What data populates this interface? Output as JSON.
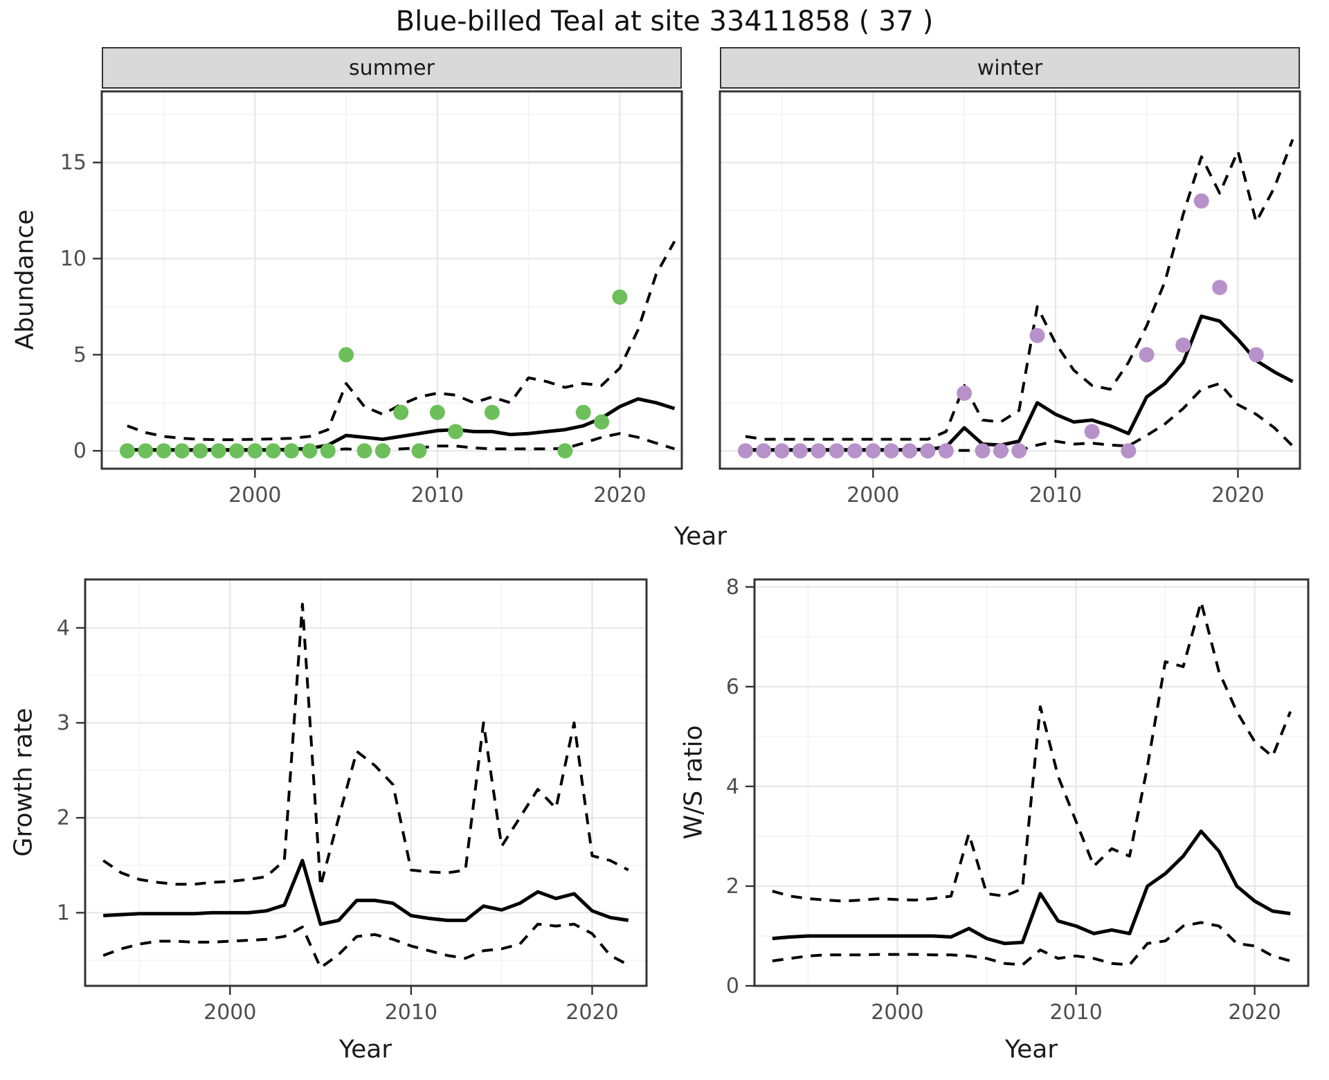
{
  "title": "Blue-billed Teal at site 33411858 ( 37 )",
  "facets": {
    "summer": "summer",
    "winter": "winter"
  },
  "axis_labels": {
    "abundance": "Abundance",
    "year_top": "Year",
    "growth": "Growth rate",
    "year_growth": "Year",
    "ws": "W/S ratio",
    "year_ws": "Year"
  },
  "colors": {
    "summer_point": "#6CBF5B",
    "winter_point": "#B791C9",
    "line": "#000000",
    "strip_bg": "#D9D9D9",
    "grid_major": "#E7E7E7",
    "grid_minor": "#F3F3F3",
    "border": "#333333",
    "tick_text": "#4D4D4D",
    "text": "#1A1A1A"
  },
  "chart_data": [
    {
      "id": "abundance-summer",
      "type": "line",
      "facet": "summer",
      "xlabel": "Year",
      "ylabel": "Abundance",
      "xlim": [
        1991.6,
        2023.4
      ],
      "ylim": [
        -0.93,
        18.7
      ],
      "xticks": [
        2000,
        2010,
        2020
      ],
      "yticks": [
        0,
        5,
        10,
        15
      ],
      "xminor": [
        1995,
        2005,
        2015
      ],
      "yminor": [
        2.5,
        7.5,
        12.5,
        17.5
      ],
      "show_ytick_labels": true,
      "years": [
        1993,
        1994,
        1995,
        1996,
        1997,
        1998,
        1999,
        2000,
        2001,
        2002,
        2003,
        2004,
        2005,
        2006,
        2007,
        2008,
        2009,
        2010,
        2011,
        2012,
        2013,
        2014,
        2015,
        2016,
        2017,
        2018,
        2019,
        2020,
        2021,
        2022,
        2023
      ],
      "series": [
        {
          "name": "median",
          "style": "solid",
          "values": [
            0.05,
            0.05,
            0.05,
            0.05,
            0.05,
            0.05,
            0.05,
            0.05,
            0.05,
            0.08,
            0.12,
            0.3,
            0.8,
            0.7,
            0.6,
            0.75,
            0.9,
            1.05,
            1.1,
            1.0,
            1.0,
            0.85,
            0.9,
            1.0,
            1.1,
            1.3,
            1.7,
            2.3,
            2.7,
            2.5,
            2.2
          ]
        },
        {
          "name": "upper-ci",
          "style": "dashed",
          "values": [
            1.3,
            0.95,
            0.75,
            0.65,
            0.6,
            0.58,
            0.58,
            0.6,
            0.62,
            0.65,
            0.75,
            1.1,
            3.5,
            2.3,
            1.9,
            2.4,
            2.8,
            3.0,
            2.9,
            2.5,
            2.8,
            2.5,
            3.8,
            3.6,
            3.3,
            3.5,
            3.4,
            4.3,
            6.3,
            9.2,
            10.9
          ]
        },
        {
          "name": "lower-ci",
          "style": "dashed",
          "values": [
            0.05,
            0.02,
            0.02,
            0.02,
            0.02,
            0.02,
            0.02,
            0.02,
            0.02,
            0.02,
            0.02,
            0.05,
            0.1,
            0.05,
            0.05,
            0.1,
            0.15,
            0.25,
            0.25,
            0.15,
            0.1,
            0.1,
            0.1,
            0.1,
            0.12,
            0.4,
            0.7,
            0.9,
            0.7,
            0.4,
            0.1
          ]
        }
      ],
      "points": {
        "name": "observed-summer",
        "color": "#6CBF5B",
        "data": [
          [
            1993,
            0
          ],
          [
            1994,
            0
          ],
          [
            1995,
            0
          ],
          [
            1996,
            0
          ],
          [
            1997,
            0
          ],
          [
            1998,
            0
          ],
          [
            1999,
            0
          ],
          [
            2000,
            0
          ],
          [
            2001,
            0
          ],
          [
            2002,
            0
          ],
          [
            2003,
            0
          ],
          [
            2004,
            0
          ],
          [
            2005,
            5
          ],
          [
            2006,
            0
          ],
          [
            2007,
            0
          ],
          [
            2008,
            2
          ],
          [
            2009,
            0
          ],
          [
            2010,
            2
          ],
          [
            2011,
            1
          ],
          [
            2013,
            2
          ],
          [
            2017,
            0
          ],
          [
            2018,
            2
          ],
          [
            2019,
            1.5
          ],
          [
            2020,
            8
          ]
        ]
      }
    },
    {
      "id": "abundance-winter",
      "type": "line",
      "facet": "winter",
      "xlabel": "Year",
      "ylabel": "Abundance",
      "xlim": [
        1991.6,
        2023.4
      ],
      "ylim": [
        -0.93,
        18.7
      ],
      "xticks": [
        2000,
        2010,
        2020
      ],
      "yticks": [
        0,
        5,
        10,
        15
      ],
      "xminor": [
        1995,
        2005,
        2015
      ],
      "yminor": [
        2.5,
        7.5,
        12.5,
        17.5
      ],
      "show_ytick_labels": false,
      "years": [
        1993,
        1994,
        1995,
        1996,
        1997,
        1998,
        1999,
        2000,
        2001,
        2002,
        2003,
        2004,
        2005,
        2006,
        2007,
        2008,
        2009,
        2010,
        2011,
        2012,
        2013,
        2014,
        2015,
        2016,
        2017,
        2018,
        2019,
        2020,
        2021,
        2022,
        2023
      ],
      "series": [
        {
          "name": "median",
          "style": "solid",
          "values": [
            0.05,
            0.05,
            0.05,
            0.05,
            0.05,
            0.05,
            0.05,
            0.05,
            0.05,
            0.05,
            0.08,
            0.2,
            1.2,
            0.35,
            0.3,
            0.5,
            2.5,
            1.9,
            1.5,
            1.6,
            1.3,
            0.9,
            2.8,
            3.5,
            4.6,
            7.0,
            6.75,
            5.8,
            4.7,
            4.1,
            3.6
          ]
        },
        {
          "name": "upper-ci",
          "style": "dashed",
          "values": [
            0.75,
            0.6,
            0.6,
            0.6,
            0.6,
            0.6,
            0.6,
            0.6,
            0.6,
            0.6,
            0.6,
            1.0,
            3.4,
            1.6,
            1.5,
            2.1,
            7.5,
            5.6,
            4.2,
            3.4,
            3.2,
            4.6,
            6.5,
            8.8,
            12.3,
            15.3,
            13.4,
            15.6,
            11.9,
            13.7,
            16.2
          ]
        },
        {
          "name": "lower-ci",
          "style": "dashed",
          "values": [
            0.02,
            0.02,
            0.02,
            0.02,
            0.02,
            0.02,
            0.02,
            0.02,
            0.02,
            0.02,
            0.02,
            0.02,
            0.02,
            0.02,
            0.02,
            0.02,
            0.3,
            0.5,
            0.35,
            0.4,
            0.3,
            0.25,
            0.8,
            1.4,
            2.2,
            3.2,
            3.5,
            2.4,
            1.9,
            1.2,
            0.25
          ]
        }
      ],
      "points": {
        "name": "observed-winter",
        "color": "#B791C9",
        "data": [
          [
            1993,
            0
          ],
          [
            1994,
            0
          ],
          [
            1995,
            0
          ],
          [
            1996,
            0
          ],
          [
            1997,
            0
          ],
          [
            1998,
            0
          ],
          [
            1999,
            0
          ],
          [
            2000,
            0
          ],
          [
            2001,
            0
          ],
          [
            2002,
            0
          ],
          [
            2003,
            0
          ],
          [
            2004,
            0
          ],
          [
            2005,
            3
          ],
          [
            2006,
            0
          ],
          [
            2007,
            0
          ],
          [
            2008,
            0
          ],
          [
            2009,
            6
          ],
          [
            2012,
            1
          ],
          [
            2014,
            0
          ],
          [
            2015,
            5
          ],
          [
            2017,
            5.5
          ],
          [
            2018,
            13
          ],
          [
            2019,
            8.5
          ],
          [
            2021,
            5
          ]
        ]
      }
    },
    {
      "id": "growth-rate",
      "type": "line",
      "xlabel": "Year",
      "ylabel": "Growth rate",
      "xlim": [
        1992.0,
        2023.0
      ],
      "ylim": [
        0.23,
        4.51
      ],
      "xticks": [
        2000,
        2010,
        2020
      ],
      "yticks": [
        1,
        2,
        3,
        4
      ],
      "xminor": [
        1995,
        2005,
        2015
      ],
      "yminor": [
        0.5,
        1.5,
        2.5,
        3.5
      ],
      "show_ytick_labels": true,
      "years": [
        1993,
        1994,
        1995,
        1996,
        1997,
        1998,
        1999,
        2000,
        2001,
        2002,
        2003,
        2004,
        2005,
        2006,
        2007,
        2008,
        2009,
        2010,
        2011,
        2012,
        2013,
        2014,
        2015,
        2016,
        2017,
        2018,
        2019,
        2020,
        2021,
        2022
      ],
      "series": [
        {
          "name": "median",
          "style": "solid",
          "values": [
            0.97,
            0.98,
            0.99,
            0.99,
            0.99,
            0.99,
            1.0,
            1.0,
            1.0,
            1.02,
            1.08,
            1.55,
            0.88,
            0.92,
            1.13,
            1.13,
            1.1,
            0.97,
            0.94,
            0.92,
            0.92,
            1.07,
            1.03,
            1.1,
            1.22,
            1.15,
            1.2,
            1.02,
            0.95,
            0.92
          ]
        },
        {
          "name": "upper-ci",
          "style": "dashed",
          "values": [
            1.55,
            1.42,
            1.35,
            1.32,
            1.3,
            1.3,
            1.32,
            1.33,
            1.35,
            1.38,
            1.55,
            4.25,
            1.28,
            2.0,
            2.7,
            2.55,
            2.35,
            1.45,
            1.43,
            1.42,
            1.45,
            3.0,
            1.7,
            2.0,
            2.3,
            2.1,
            3.0,
            1.6,
            1.55,
            1.45
          ]
        },
        {
          "name": "lower-ci",
          "style": "dashed",
          "values": [
            0.55,
            0.62,
            0.67,
            0.7,
            0.7,
            0.69,
            0.69,
            0.7,
            0.71,
            0.72,
            0.75,
            0.85,
            0.42,
            0.56,
            0.75,
            0.77,
            0.72,
            0.65,
            0.6,
            0.55,
            0.52,
            0.6,
            0.62,
            0.67,
            0.88,
            0.86,
            0.88,
            0.78,
            0.55,
            0.45
          ]
        }
      ]
    },
    {
      "id": "ws-ratio",
      "type": "line",
      "xlabel": "Year",
      "ylabel": "W/S ratio",
      "xlim": [
        1992.0,
        2023.0
      ],
      "ylim": [
        0,
        8.15
      ],
      "xticks": [
        2000,
        2010,
        2020
      ],
      "yticks": [
        0,
        2,
        4,
        6,
        8
      ],
      "xminor": [
        1995,
        2005,
        2015
      ],
      "yminor": [
        1,
        3,
        5,
        7
      ],
      "show_ytick_labels": true,
      "years": [
        1993,
        1994,
        1995,
        1996,
        1997,
        1998,
        1999,
        2000,
        2001,
        2002,
        2003,
        2004,
        2005,
        2006,
        2007,
        2008,
        2009,
        2010,
        2011,
        2012,
        2013,
        2014,
        2015,
        2016,
        2017,
        2018,
        2019,
        2020,
        2021,
        2022
      ],
      "series": [
        {
          "name": "median",
          "style": "solid",
          "values": [
            0.95,
            0.98,
            1.0,
            1.0,
            1.0,
            1.0,
            1.0,
            1.0,
            1.0,
            1.0,
            0.98,
            1.15,
            0.95,
            0.85,
            0.87,
            1.85,
            1.3,
            1.2,
            1.05,
            1.12,
            1.05,
            2.0,
            2.25,
            2.6,
            3.1,
            2.7,
            2.0,
            1.7,
            1.5,
            1.45
          ]
        },
        {
          "name": "upper-ci",
          "style": "dashed",
          "values": [
            1.9,
            1.8,
            1.75,
            1.72,
            1.7,
            1.72,
            1.75,
            1.73,
            1.72,
            1.75,
            1.8,
            3.05,
            1.85,
            1.8,
            1.95,
            5.6,
            4.2,
            3.3,
            2.4,
            2.75,
            2.6,
            4.4,
            6.5,
            6.4,
            7.7,
            6.3,
            5.5,
            4.9,
            4.6,
            5.5
          ]
        },
        {
          "name": "lower-ci",
          "style": "dashed",
          "values": [
            0.5,
            0.55,
            0.6,
            0.62,
            0.62,
            0.62,
            0.63,
            0.63,
            0.63,
            0.62,
            0.62,
            0.6,
            0.55,
            0.45,
            0.42,
            0.72,
            0.55,
            0.6,
            0.55,
            0.45,
            0.42,
            0.85,
            0.9,
            1.2,
            1.27,
            1.2,
            0.85,
            0.8,
            0.6,
            0.5
          ]
        }
      ]
    }
  ]
}
